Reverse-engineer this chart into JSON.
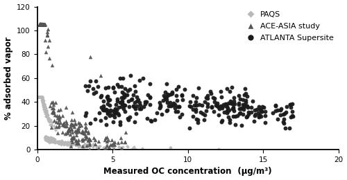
{
  "title": "",
  "xlabel": "Measured OC concentration   (μg/m³)",
  "ylabel": "% adsorbed vapor",
  "xlim": [
    0,
    20
  ],
  "ylim": [
    0,
    120
  ],
  "xticks": [
    0,
    5,
    10,
    15,
    20
  ],
  "yticks": [
    0,
    20,
    40,
    60,
    80,
    100,
    120
  ],
  "paqs_color": "#b8b8b8",
  "ace_color": "#555555",
  "atlanta_color": "#1a1a1a",
  "legend_labels": [
    "PAQS",
    "ACE-ASIA study",
    "ATLANTA Supersite"
  ],
  "background_color": "#ffffff",
  "seed": 42,
  "figsize": [
    5.0,
    2.6
  ],
  "dpi": 100
}
